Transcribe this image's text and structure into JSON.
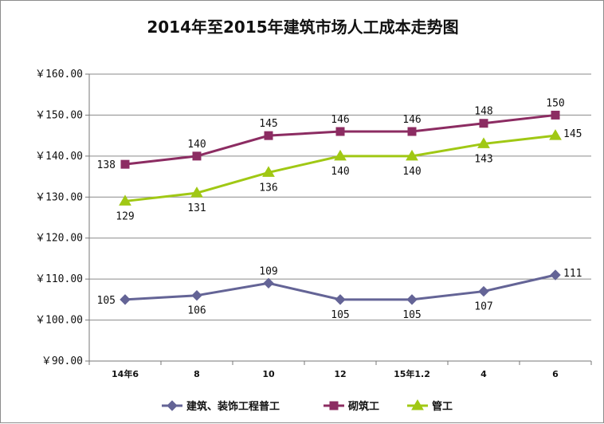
{
  "chart_data": {
    "type": "line",
    "title": "2014年至2015年建筑市场人工成本走势图",
    "categories": [
      "14年6",
      "8",
      "10",
      "12",
      "15年1.2",
      "4",
      "6"
    ],
    "ylim": [
      90,
      160
    ],
    "yticks": [
      "￥90.00",
      "￥100.00",
      "￥110.00",
      "￥120.00",
      "￥130.00",
      "￥140.00",
      "￥150.00",
      "￥160.00"
    ],
    "grid": true,
    "legend_position": "bottom",
    "series": [
      {
        "name": "建筑、装饰工程普工",
        "color": "#646496",
        "marker": "diamond",
        "values": [
          105,
          106,
          109,
          105,
          105,
          107,
          111
        ],
        "label_pos": [
          "left",
          "below",
          "above",
          "below",
          "below",
          "below",
          "right"
        ]
      },
      {
        "name": "砌筑工",
        "color": "#8c2c62",
        "marker": "square",
        "values": [
          138,
          140,
          145,
          146,
          146,
          148,
          150
        ],
        "label_pos": [
          "left",
          "above",
          "above",
          "above",
          "above",
          "above",
          "above"
        ]
      },
      {
        "name": "管工",
        "color": "#a0c814",
        "marker": "triangle",
        "values": [
          129,
          131,
          136,
          140,
          140,
          143,
          145
        ],
        "label_pos": [
          "below",
          "below",
          "below",
          "below",
          "below",
          "below",
          "right"
        ]
      }
    ]
  }
}
